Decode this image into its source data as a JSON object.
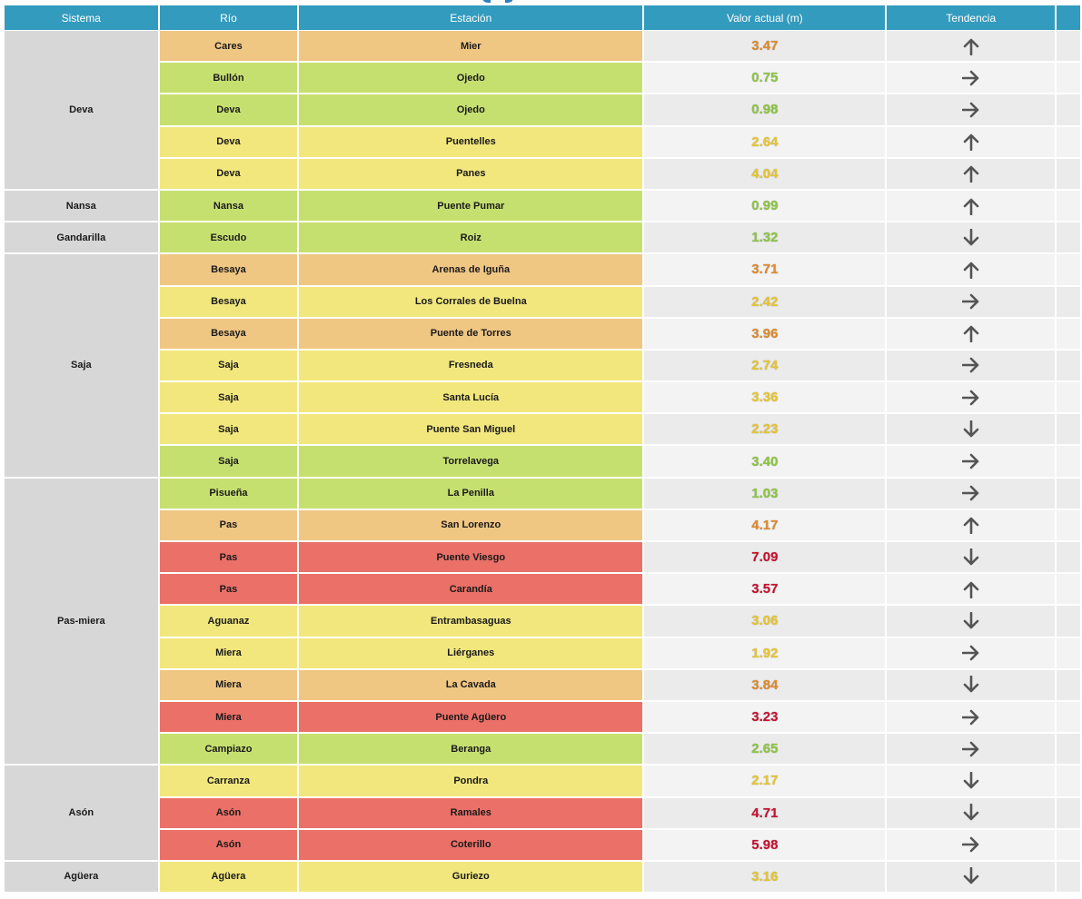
{
  "header": {
    "sistema": "Sistema",
    "rio": "Río",
    "estacion": "Estación",
    "valor": "Valor actual (m)",
    "tendencia": "Tendencia"
  },
  "colors": {
    "header_bg": "#339bbd",
    "green": "#c6e070",
    "yellow": "#f2e77d",
    "orange": "#f0c683",
    "red": "#eb7068",
    "val_green": "#8cc63f",
    "val_yellow": "#e8c62c",
    "val_orange": "#e08a2a",
    "val_red": "#c8102e",
    "arrow": "#555555"
  },
  "groups": [
    {
      "sistema": "Deva",
      "rows": [
        {
          "rio": "Cares",
          "estacion": "Mier",
          "valor": "3.47",
          "level": "orange",
          "trend": "up"
        },
        {
          "rio": "Bullón",
          "estacion": "Ojedo",
          "valor": "0.75",
          "level": "green",
          "trend": "right"
        },
        {
          "rio": "Deva",
          "estacion": "Ojedo",
          "valor": "0.98",
          "level": "green",
          "trend": "right"
        },
        {
          "rio": "Deva",
          "estacion": "Puentelles",
          "valor": "2.64",
          "level": "yellow",
          "trend": "up"
        },
        {
          "rio": "Deva",
          "estacion": "Panes",
          "valor": "4.04",
          "level": "yellow",
          "trend": "up"
        }
      ]
    },
    {
      "sistema": "Nansa",
      "rows": [
        {
          "rio": "Nansa",
          "estacion": "Puente Pumar",
          "valor": "0.99",
          "level": "green",
          "trend": "up"
        }
      ]
    },
    {
      "sistema": "Gandarilla",
      "rows": [
        {
          "rio": "Escudo",
          "estacion": "Roiz",
          "valor": "1.32",
          "level": "green",
          "trend": "down"
        }
      ]
    },
    {
      "sistema": "Saja",
      "rows": [
        {
          "rio": "Besaya",
          "estacion": "Arenas de Iguña",
          "valor": "3.71",
          "level": "orange",
          "trend": "up"
        },
        {
          "rio": "Besaya",
          "estacion": "Los Corrales de Buelna",
          "valor": "2.42",
          "level": "yellow",
          "trend": "right"
        },
        {
          "rio": "Besaya",
          "estacion": "Puente de Torres",
          "valor": "3.96",
          "level": "orange",
          "trend": "up"
        },
        {
          "rio": "Saja",
          "estacion": "Fresneda",
          "valor": "2.74",
          "level": "yellow",
          "trend": "right"
        },
        {
          "rio": "Saja",
          "estacion": "Santa Lucía",
          "valor": "3.36",
          "level": "yellow",
          "trend": "right"
        },
        {
          "rio": "Saja",
          "estacion": "Puente San Miguel",
          "valor": "2.23",
          "level": "yellow",
          "trend": "down"
        },
        {
          "rio": "Saja",
          "estacion": "Torrelavega",
          "valor": "3.40",
          "level": "green",
          "trend": "right"
        }
      ]
    },
    {
      "sistema": "Pas-miera",
      "rows": [
        {
          "rio": "Pisueña",
          "estacion": "La Penilla",
          "valor": "1.03",
          "level": "green",
          "trend": "right"
        },
        {
          "rio": "Pas",
          "estacion": "San Lorenzo",
          "valor": "4.17",
          "level": "orange",
          "trend": "up"
        },
        {
          "rio": "Pas",
          "estacion": "Puente Viesgo",
          "valor": "7.09",
          "level": "red",
          "trend": "down"
        },
        {
          "rio": "Pas",
          "estacion": "Carandía",
          "valor": "3.57",
          "level": "red",
          "trend": "up"
        },
        {
          "rio": "Aguanaz",
          "estacion": "Entrambasaguas",
          "valor": "3.06",
          "level": "yellow",
          "trend": "down"
        },
        {
          "rio": "Miera",
          "estacion": "Liérganes",
          "valor": "1.92",
          "level": "yellow",
          "trend": "right"
        },
        {
          "rio": "Miera",
          "estacion": "La Cavada",
          "valor": "3.84",
          "level": "orange",
          "trend": "down"
        },
        {
          "rio": "Miera",
          "estacion": "Puente Agüero",
          "valor": "3.23",
          "level": "red",
          "trend": "right"
        },
        {
          "rio": "Campiazo",
          "estacion": "Beranga",
          "valor": "2.65",
          "level": "green",
          "trend": "right"
        }
      ]
    },
    {
      "sistema": "Asón",
      "rows": [
        {
          "rio": "Carranza",
          "estacion": "Pondra",
          "valor": "2.17",
          "level": "yellow",
          "trend": "down"
        },
        {
          "rio": "Asón",
          "estacion": "Ramales",
          "valor": "4.71",
          "level": "red",
          "trend": "down"
        },
        {
          "rio": "Asón",
          "estacion": "Coterillo",
          "valor": "5.98",
          "level": "red",
          "trend": "right"
        }
      ]
    },
    {
      "sistema": "Agüera",
      "rows": [
        {
          "rio": "Agüera",
          "estacion": "Guriezo",
          "valor": "3.16",
          "level": "yellow",
          "trend": "down"
        }
      ]
    }
  ]
}
